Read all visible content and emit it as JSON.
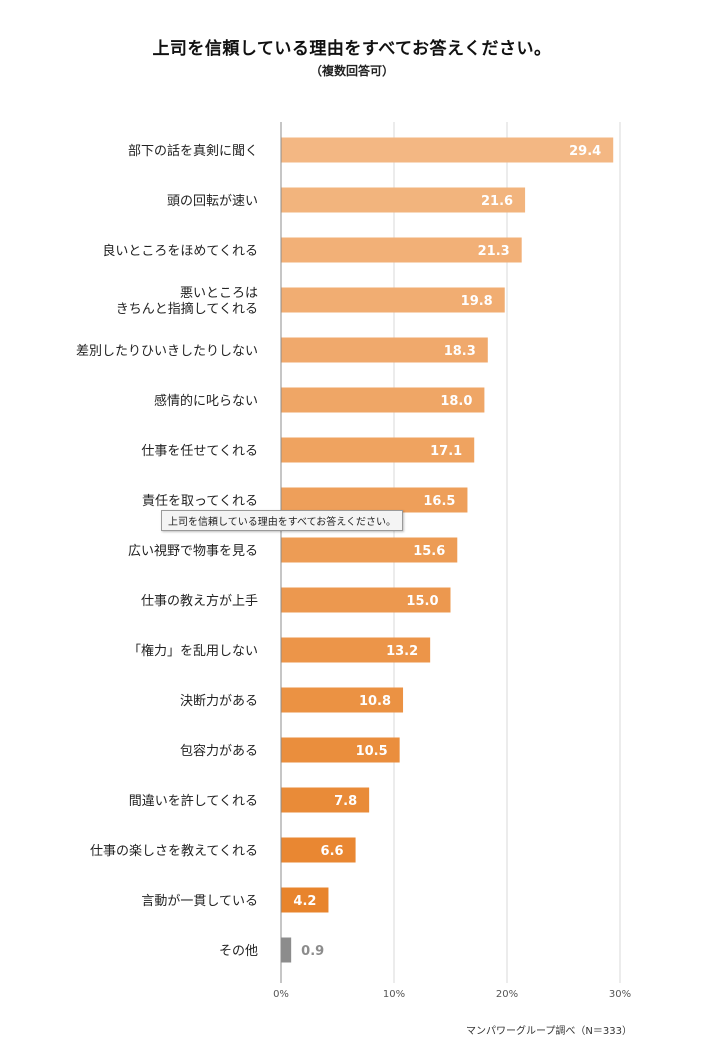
{
  "title": "上司を信頼している理由をすべてお答えください。",
  "subtitle": "（複数回答可）",
  "tooltip": "上司を信頼している理由をすべてお答えください。",
  "source": "マンパワーグループ調べ（N＝333）",
  "chart_data": {
    "type": "bar",
    "orientation": "horizontal",
    "categories": [
      "部下の話を真剣に聞く",
      "頭の回転が速い",
      "良いところをほめてくれる",
      "悪いところは\nきちんと指摘してくれる",
      "差別したりひいきしたりしない",
      "感情的に叱らない",
      "仕事を任せてくれる",
      "責任を取ってくれる",
      "広い視野で物事を見る",
      "仕事の教え方が上手",
      "「権力」を乱用しない",
      "決断力がある",
      "包容力がある",
      "間違いを許してくれる",
      "仕事の楽しさを教えてくれる",
      "言動が一貫している",
      "その他"
    ],
    "values": [
      29.4,
      21.6,
      21.3,
      19.8,
      18.3,
      18.0,
      17.1,
      16.5,
      15.6,
      15.0,
      13.2,
      10.8,
      10.5,
      7.8,
      6.6,
      4.2,
      0.9
    ],
    "value_labels": [
      "29.4",
      "21.6",
      "21.3",
      "19.8",
      "18.3",
      "18.0",
      "17.1",
      "16.5",
      "15.6",
      "15.0",
      "13.2",
      "10.8",
      "10.5",
      "7.8",
      "6.6",
      "4.2",
      "0.9"
    ],
    "xlim": [
      0,
      30
    ],
    "x_ticks": [
      "0%",
      "10%",
      "20%",
      "30%"
    ],
    "grid": true,
    "colors": {
      "gradient_start": "#f3b783",
      "gradient_end": "#e8842c",
      "other": "#8c8c8c",
      "grid": "#d9d9d9",
      "axis": "#8c8c8c",
      "value_text_inside": "#ffffff",
      "value_text_outside": "#8c8c8c"
    }
  }
}
